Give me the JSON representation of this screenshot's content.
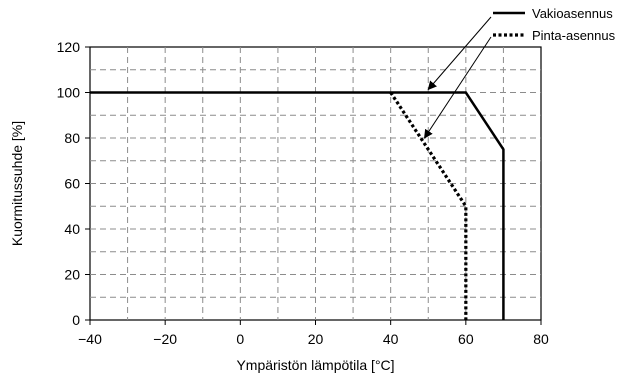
{
  "chart_data": {
    "type": "line",
    "xlabel": "Ympäristön lämpötila [°C]",
    "ylabel": "Kuormitussuhde [%]",
    "xlim": [
      -40,
      80
    ],
    "ylim": [
      0,
      120
    ],
    "x_ticks": [
      -40,
      -20,
      0,
      20,
      40,
      60,
      80
    ],
    "x_tick_labels": [
      "−40",
      "−20",
      "0",
      "20",
      "40",
      "60",
      "80"
    ],
    "y_ticks": [
      0,
      20,
      40,
      60,
      80,
      100,
      120
    ],
    "y_tick_labels": [
      "0",
      "20",
      "40",
      "60",
      "80",
      "100",
      "120"
    ],
    "grid": true,
    "legend_position": "top-right",
    "series": [
      {
        "name": "Vakioasennus",
        "style": "solid",
        "x": [
          -40,
          60,
          70,
          70
        ],
        "y": [
          100,
          100,
          75,
          0
        ]
      },
      {
        "name": "Pinta-asennus",
        "style": "dotted",
        "x": [
          40,
          60,
          60
        ],
        "y": [
          100,
          50,
          0
        ]
      }
    ]
  }
}
